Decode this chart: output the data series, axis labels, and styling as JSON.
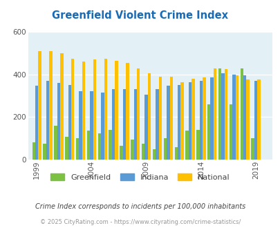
{
  "title": "Greenfield Violent Crime Index",
  "title_color": "#1a6bb5",
  "years": [
    1999,
    2000,
    2001,
    2002,
    2003,
    2004,
    2005,
    2006,
    2007,
    2008,
    2009,
    2010,
    2011,
    2012,
    2013,
    2014,
    2015,
    2016,
    2017,
    2018,
    2019
  ],
  "greenfield": [
    80,
    75,
    160,
    108,
    100,
    135,
    125,
    140,
    65,
    95,
    75,
    50,
    100,
    60,
    135,
    140,
    260,
    430,
    260,
    430,
    100
  ],
  "indiana": [
    348,
    370,
    360,
    350,
    320,
    320,
    315,
    330,
    330,
    330,
    305,
    330,
    348,
    350,
    365,
    370,
    385,
    405,
    400,
    395,
    370
  ],
  "national": [
    510,
    510,
    500,
    475,
    460,
    470,
    475,
    465,
    455,
    430,
    405,
    390,
    390,
    365,
    380,
    385,
    430,
    425,
    395,
    375,
    375
  ],
  "greenfield_color": "#7dc142",
  "indiana_color": "#5b9bd5",
  "national_color": "#ffc000",
  "bg_color": "#e3f0f5",
  "ylim": [
    0,
    600
  ],
  "yticks": [
    0,
    200,
    400,
    600
  ],
  "legend_labels": [
    "Greenfield",
    "Indiana",
    "National"
  ],
  "footnote1": "Crime Index corresponds to incidents per 100,000 inhabitants",
  "footnote2": "© 2025 CityRating.com - https://www.cityrating.com/crime-statistics/",
  "footnote1_color": "#444444",
  "footnote2_color": "#999999",
  "xtick_positions": [
    1999,
    2004,
    2009,
    2014,
    2019
  ],
  "bar_width": 0.28
}
